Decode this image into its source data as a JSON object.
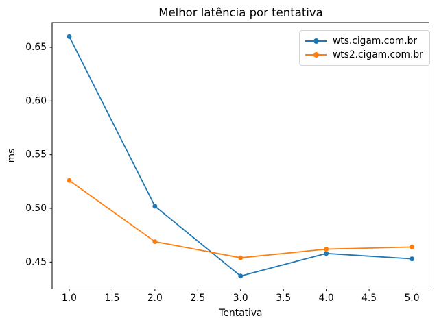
{
  "chart_data": {
    "type": "line",
    "title": "Melhor latência por tentativa",
    "xlabel": "Tentativa",
    "ylabel": "ms",
    "x": [
      1,
      2,
      3,
      4,
      5
    ],
    "series": [
      {
        "name": "wts.cigam.com.br",
        "color": "#1f77b4",
        "values": [
          0.66,
          0.502,
          0.437,
          0.458,
          0.453
        ]
      },
      {
        "name": "wts2.cigam.com.br",
        "color": "#ff7f0e",
        "values": [
          0.526,
          0.469,
          0.454,
          0.462,
          0.464
        ]
      }
    ],
    "xticks": [
      1.0,
      1.5,
      2.0,
      2.5,
      3.0,
      3.5,
      4.0,
      4.5,
      5.0
    ],
    "xtick_labels": [
      "1.0",
      "1.5",
      "2.0",
      "2.5",
      "3.0",
      "3.5",
      "4.0",
      "4.5",
      "5.0"
    ],
    "yticks": [
      0.45,
      0.5,
      0.55,
      0.6,
      0.65
    ],
    "ytick_labels": [
      "0.45",
      "0.50",
      "0.55",
      "0.60",
      "0.65"
    ],
    "xlim": [
      0.8,
      5.2
    ],
    "ylim": [
      0.425,
      0.673
    ],
    "grid": false,
    "marker": "circle",
    "axis_color": "#000000",
    "legend": {
      "position": "upper right",
      "entries": [
        "wts.cigam.com.br",
        "wts2.cigam.com.br"
      ]
    }
  }
}
